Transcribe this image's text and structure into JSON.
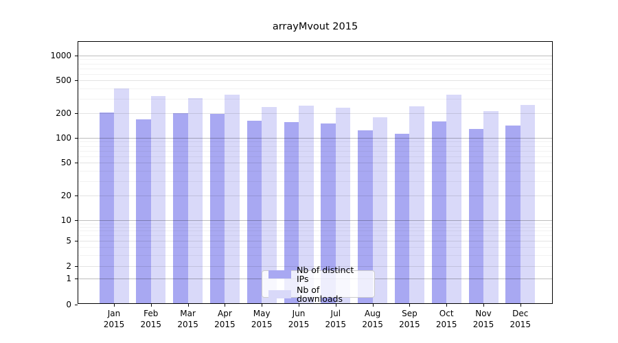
{
  "title": "arrayMvout 2015",
  "colors": {
    "distinct_ips": "#a8a8f2",
    "downloads": "#d9d9f9",
    "grid_major": "rgba(0,0,0,0.26)",
    "grid_labeled_minor": "rgba(0,0,0,0.11)",
    "grid_unlabeled_minor": "rgba(0,0,0,0.05)"
  },
  "legend": {
    "items": [
      {
        "label": "Nb of distinct IPs",
        "series": "distinct_ips"
      },
      {
        "label": "Nb of downloads",
        "series": "downloads"
      }
    ]
  },
  "chart_data": {
    "type": "bar",
    "title": "arrayMvout 2015",
    "months": [
      "Jan",
      "Feb",
      "Mar",
      "Apr",
      "May",
      "Jun",
      "Jul",
      "Aug",
      "Sep",
      "Oct",
      "Nov",
      "Dec"
    ],
    "year_label": "2015",
    "series": [
      {
        "name": "Nb of distinct IPs",
        "key": "distinct_ips",
        "values": [
          197,
          162,
          193,
          187,
          157,
          151,
          145,
          120,
          109,
          153,
          123,
          135
        ]
      },
      {
        "name": "Nb of downloads",
        "key": "downloads",
        "values": [
          385,
          311,
          293,
          324,
          227,
          236,
          222,
          172,
          234,
          320,
          202,
          240
        ]
      }
    ],
    "yscale": "symlog",
    "y_ticks": [
      1000,
      500,
      200,
      100,
      50,
      20,
      10,
      5,
      2,
      1,
      0
    ],
    "y_major_grid": [
      1000,
      100,
      10,
      1
    ],
    "y_labeled_minor_grid": [
      500,
      200,
      50,
      20,
      5,
      2
    ],
    "ylim": [
      0,
      1468
    ],
    "grid": true,
    "legend_position": "lower center"
  }
}
